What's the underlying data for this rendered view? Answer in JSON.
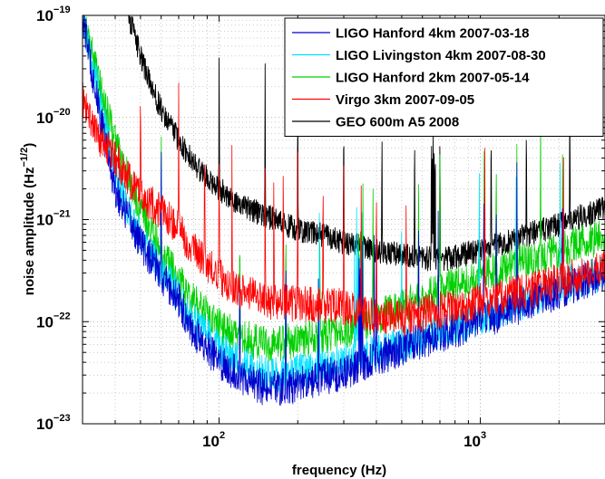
{
  "chart_data": {
    "type": "line",
    "title": "",
    "xlabel": "frequency (Hz)",
    "ylabel": "noise amplitude (Hz",
    "ylabel_exponent": "−1/2",
    "ylabel_close": ")",
    "x_scale": "log",
    "y_scale": "log",
    "xlim": [
      30,
      3000
    ],
    "ylim": [
      1e-23,
      1e-19
    ],
    "x_tick_labels": [
      {
        "value": 100,
        "base": "10",
        "exp": "2"
      },
      {
        "value": 1000,
        "base": "10",
        "exp": "3"
      }
    ],
    "y_tick_labels": [
      {
        "value": 1e-19,
        "base": "10",
        "exp": "−19"
      },
      {
        "value": 1e-20,
        "base": "10",
        "exp": "−20"
      },
      {
        "value": 1e-21,
        "base": "10",
        "exp": "−21"
      },
      {
        "value": 1e-22,
        "base": "10",
        "exp": "−22"
      },
      {
        "value": 1e-23,
        "base": "10",
        "exp": "−23"
      }
    ],
    "grid": true,
    "legend_position": "top-right",
    "series": [
      {
        "name": "LIGO Hanford 4km 2007-03-18",
        "color": "#0000cc",
        "x": [
          30,
          35,
          40,
          45,
          50,
          60,
          70,
          80,
          100,
          120,
          150,
          200,
          300,
          400,
          500,
          700,
          1000,
          1500,
          2000,
          3000
        ],
        "y": [
          1e-19,
          1e-20,
          2e-21,
          1e-21,
          6e-22,
          2.8e-22,
          1.6e-22,
          8e-23,
          4e-23,
          3e-23,
          2.2e-23,
          2.4e-23,
          3.2e-23,
          4.4e-23,
          5.5e-23,
          7.5e-23,
          1e-22,
          1.5e-22,
          2e-22,
          3e-22
        ]
      },
      {
        "name": "LIGO Livingston 4km 2007-08-30",
        "color": "#00e0ff",
        "x": [
          30,
          35,
          40,
          45,
          50,
          60,
          70,
          80,
          100,
          120,
          150,
          200,
          300,
          400,
          500,
          700,
          1000,
          1500,
          2000,
          3000
        ],
        "y": [
          1e-19,
          1.5e-20,
          3e-21,
          1.2e-21,
          7e-22,
          3.2e-22,
          1.8e-22,
          1e-22,
          5.5e-23,
          4e-23,
          3e-23,
          3.2e-23,
          4e-23,
          5e-23,
          6e-23,
          8e-23,
          1.1e-22,
          1.6e-22,
          2.2e-22,
          3e-22
        ]
      },
      {
        "name": "LIGO Hanford 2km 2007-05-14",
        "color": "#00d000",
        "x": [
          30,
          35,
          40,
          45,
          50,
          60,
          70,
          80,
          100,
          120,
          150,
          200,
          300,
          400,
          500,
          700,
          1000,
          1500,
          2000,
          3000
        ],
        "y": [
          1e-19,
          2e-20,
          6e-21,
          2.5e-21,
          1.2e-21,
          5e-22,
          2.6e-22,
          1.6e-22,
          9e-23,
          7e-23,
          6e-23,
          6.5e-23,
          8e-23,
          1.1e-22,
          1.4e-22,
          2e-22,
          2.8e-22,
          4e-22,
          5e-22,
          7e-22
        ]
      },
      {
        "name": "Virgo 3km 2007-09-05",
        "color": "#ff0000",
        "x": [
          30,
          35,
          40,
          45,
          50,
          60,
          70,
          80,
          100,
          120,
          150,
          200,
          300,
          400,
          500,
          700,
          1000,
          1500,
          2000,
          3000
        ],
        "y": [
          1.5e-20,
          6e-21,
          4e-21,
          2.5e-21,
          1.8e-21,
          1.2e-21,
          8e-22,
          5e-22,
          2.8e-22,
          2e-22,
          1.6e-22,
          1.5e-22,
          1.4e-22,
          1.1e-22,
          1.1e-22,
          1.3e-22,
          1.6e-22,
          2e-22,
          2.5e-22,
          3.5e-22
        ]
      },
      {
        "name": "GEO 600m A5 2008",
        "color": "#000000",
        "x": [
          45,
          50,
          55,
          60,
          70,
          80,
          100,
          120,
          150,
          200,
          250,
          300,
          400,
          500,
          700,
          1000,
          1500,
          2000,
          3000
        ],
        "y": [
          1e-19,
          4e-20,
          2e-20,
          1.2e-20,
          6e-21,
          3.5e-21,
          2e-21,
          1.4e-21,
          1.1e-21,
          8e-22,
          7e-22,
          6e-22,
          5e-22,
          4.5e-22,
          4e-22,
          5e-22,
          7e-22,
          9e-22,
          1.3e-21
        ]
      }
    ]
  }
}
